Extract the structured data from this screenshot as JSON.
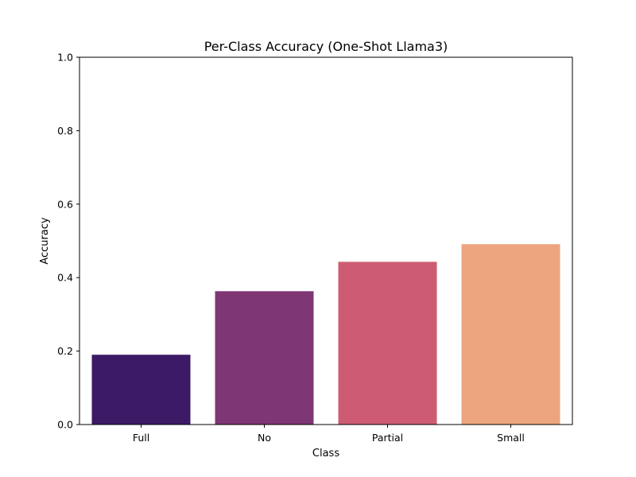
{
  "chart_data": {
    "type": "bar",
    "title": "Per-Class Accuracy (One-Shot Llama3)",
    "xlabel": "Class",
    "ylabel": "Accuracy",
    "categories": [
      "Full",
      "No",
      "Partial",
      "Small"
    ],
    "values": [
      0.19,
      0.363,
      0.443,
      0.491
    ],
    "colors": [
      "#3d1a66",
      "#7f3675",
      "#cd5c72",
      "#eca57e"
    ],
    "ylim": [
      0,
      1.0
    ],
    "yticks": [
      "0.0",
      "0.2",
      "0.4",
      "0.6",
      "0.8",
      "1.0"
    ],
    "grid": false,
    "legend": "none"
  }
}
